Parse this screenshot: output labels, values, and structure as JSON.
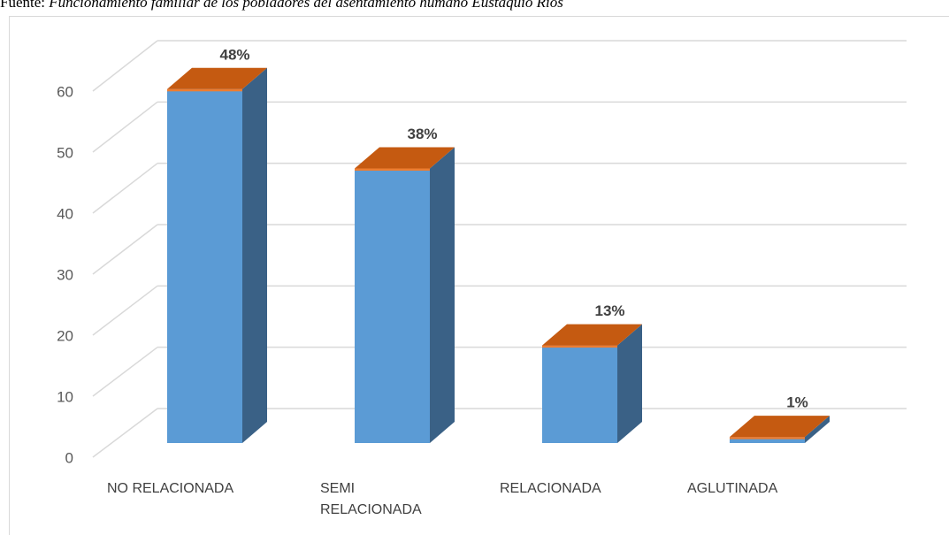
{
  "header": {
    "source_label": "Fuente:",
    "source_text": "Funcionamiento familiar de los pobladores del asentamiento humano Eustaquio Ríos"
  },
  "chart_data": {
    "type": "bar3d",
    "categories": [
      "NO RELACIONADA",
      "SEMI RELACIONADA",
      "RELACIONADA",
      "AGLUTINADA"
    ],
    "values": [
      58,
      45,
      16,
      1
    ],
    "data_labels": [
      "48%",
      "38%",
      "13%",
      "1%"
    ],
    "color": "#5b9bd5",
    "side_color": "#3a6186",
    "top_color": "#c55a11",
    "ylim": [
      0,
      60
    ],
    "yticks": [
      0,
      10,
      20,
      30,
      40,
      50,
      60
    ],
    "grid": true
  }
}
